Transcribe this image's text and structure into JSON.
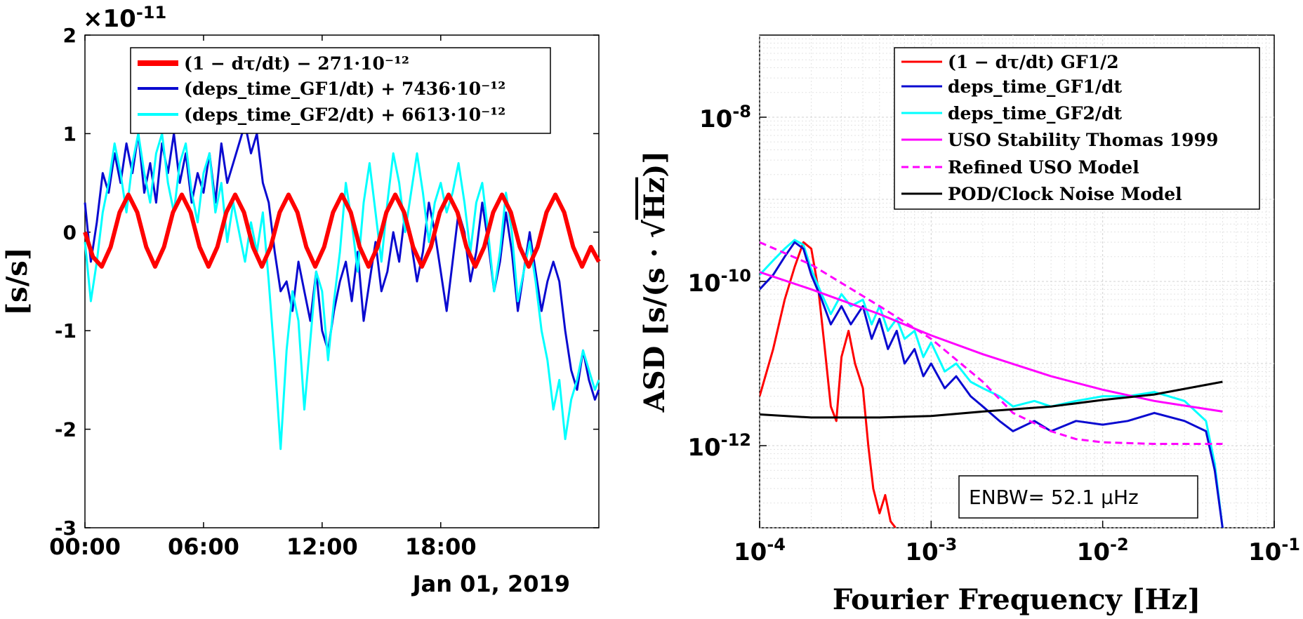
{
  "chart_data": [
    {
      "type": "line",
      "title": "",
      "exponent_label": "×10",
      "exponent_sup": "-11",
      "ylabel": "[s/s]",
      "ylim": [
        -3,
        2
      ],
      "yticks": [
        "-3",
        "-2",
        "-1",
        "0",
        "1",
        "2"
      ],
      "ytick_values": [
        -3,
        -2,
        -1,
        0,
        1,
        2
      ],
      "xlim_hours": [
        0,
        26
      ],
      "xticks": [
        "00:00",
        "06:00",
        "12:00",
        "18:00"
      ],
      "xtick_hours": [
        0,
        6,
        12,
        18
      ],
      "date_label": "Jan 01, 2019",
      "legend": [
        {
          "label": "(1 − dτ/dt) − 271·10⁻¹²",
          "color": "#ff0000"
        },
        {
          "label": "(deps_time_GF1/dt) + 7436·10⁻¹²",
          "color": "#0a0ad0"
        },
        {
          "label": "(deps_time_GF2/dt) + 6613·10⁻¹²",
          "color": "#00ffff"
        }
      ],
      "series": [
        {
          "name": "red",
          "color": "#ff0000",
          "x": [
            0,
            0.4,
            0.85,
            1.3,
            1.75,
            2.2,
            2.65,
            3.1,
            3.55,
            4.0,
            4.45,
            4.9,
            5.35,
            5.8,
            6.25,
            6.7,
            7.15,
            7.6,
            8.05,
            8.5,
            8.95,
            9.4,
            9.85,
            10.3,
            10.75,
            11.2,
            11.65,
            12.1,
            12.55,
            13.0,
            13.45,
            13.9,
            14.35,
            14.8,
            15.25,
            15.7,
            16.15,
            16.6,
            17.05,
            17.5,
            17.95,
            18.4,
            18.85,
            19.3,
            19.75,
            20.2,
            20.65,
            21.1,
            21.55,
            22.0,
            22.45,
            22.9,
            23.35,
            23.8,
            24.25,
            24.7,
            25.15,
            25.6,
            26
          ],
          "values": [
            0,
            -0.25,
            -0.35,
            -0.15,
            0.2,
            0.38,
            0.2,
            -0.15,
            -0.35,
            -0.15,
            0.2,
            0.38,
            0.2,
            -0.15,
            -0.35,
            -0.15,
            0.2,
            0.38,
            0.2,
            -0.15,
            -0.35,
            -0.15,
            0.2,
            0.38,
            0.2,
            -0.15,
            -0.35,
            -0.15,
            0.2,
            0.38,
            0.2,
            -0.15,
            -0.35,
            -0.15,
            0.2,
            0.38,
            0.2,
            -0.15,
            -0.35,
            -0.15,
            0.2,
            0.38,
            0.2,
            -0.15,
            -0.35,
            -0.15,
            0.2,
            0.38,
            0.2,
            -0.15,
            -0.35,
            -0.15,
            0.2,
            0.38,
            0.2,
            -0.15,
            -0.35,
            -0.15,
            -0.3
          ]
        },
        {
          "name": "blue",
          "color": "#0a0ad0",
          "x": [
            0,
            0.3,
            0.6,
            0.9,
            1.2,
            1.5,
            1.8,
            2.1,
            2.4,
            2.7,
            3.0,
            3.3,
            3.6,
            3.9,
            4.2,
            4.5,
            4.8,
            5.1,
            5.4,
            5.7,
            6.0,
            6.3,
            6.6,
            6.9,
            7.2,
            7.5,
            7.8,
            8.1,
            8.4,
            8.7,
            9.0,
            9.3,
            9.6,
            9.9,
            10.2,
            10.5,
            10.8,
            11.1,
            11.4,
            11.7,
            12.0,
            12.3,
            12.6,
            12.9,
            13.2,
            13.5,
            13.8,
            14.1,
            14.4,
            14.7,
            15.0,
            15.3,
            15.6,
            15.9,
            16.2,
            16.5,
            16.8,
            17.1,
            17.4,
            17.7,
            18.0,
            18.3,
            18.6,
            18.9,
            19.2,
            19.5,
            19.8,
            20.1,
            20.4,
            20.7,
            21.0,
            21.3,
            21.6,
            21.9,
            22.2,
            22.5,
            22.8,
            23.1,
            23.4,
            23.7,
            24.0,
            24.3,
            24.6,
            24.9,
            25.2,
            25.5,
            25.8,
            26
          ],
          "values": [
            0.3,
            -0.3,
            0.1,
            0.6,
            0.4,
            0.8,
            0.5,
            0.9,
            0.6,
            1.0,
            0.4,
            0.7,
            0.3,
            0.9,
            0.6,
            1.0,
            0.5,
            0.8,
            0.3,
            0.6,
            0.4,
            0.8,
            0.3,
            0.9,
            0.5,
            0.7,
            0.9,
            1.1,
            0.8,
            1.0,
            0.5,
            0.3,
            -0.2,
            -0.6,
            -0.5,
            -0.8,
            -0.3,
            -0.6,
            -0.9,
            -0.4,
            -1.0,
            -1.2,
            -0.8,
            -0.5,
            -0.3,
            -0.7,
            -0.2,
            -0.9,
            -0.5,
            -0.1,
            -0.6,
            -0.4,
            0.0,
            -0.3,
            0.2,
            -0.1,
            -0.5,
            -0.2,
            0.3,
            0.0,
            -0.4,
            -0.8,
            -0.3,
            0.2,
            0.0,
            -0.5,
            -0.2,
            0.3,
            -0.1,
            -0.6,
            -0.3,
            0.2,
            -0.2,
            -0.8,
            -0.4,
            0.0,
            -0.4,
            -0.8,
            -0.5,
            -0.3,
            -0.5,
            -1.0,
            -1.4,
            -1.6,
            -1.2,
            -1.5,
            -1.7,
            -1.6
          ]
        },
        {
          "name": "cyan",
          "color": "#00ffff",
          "x": [
            0,
            0.3,
            0.6,
            0.9,
            1.2,
            1.5,
            1.8,
            2.1,
            2.4,
            2.7,
            3.0,
            3.3,
            3.6,
            3.9,
            4.2,
            4.5,
            4.8,
            5.1,
            5.4,
            5.7,
            6.0,
            6.3,
            6.6,
            6.9,
            7.2,
            7.5,
            7.8,
            8.1,
            8.4,
            8.7,
            9.0,
            9.3,
            9.6,
            9.9,
            10.2,
            10.5,
            10.8,
            11.1,
            11.4,
            11.7,
            12.0,
            12.3,
            12.6,
            12.9,
            13.2,
            13.5,
            13.8,
            14.1,
            14.4,
            14.7,
            15.0,
            15.3,
            15.6,
            15.9,
            16.2,
            16.5,
            16.8,
            17.1,
            17.4,
            17.7,
            18.0,
            18.3,
            18.6,
            18.9,
            19.2,
            19.5,
            19.8,
            20.1,
            20.4,
            20.7,
            21.0,
            21.3,
            21.6,
            21.9,
            22.2,
            22.5,
            22.8,
            23.1,
            23.4,
            23.7,
            24.0,
            24.3,
            24.6,
            24.9,
            25.2,
            25.5,
            25.8,
            26
          ],
          "values": [
            -0.1,
            -0.7,
            -0.3,
            0.2,
            0.5,
            0.9,
            0.6,
            0.2,
            0.7,
            1.0,
            0.6,
            0.3,
            0.8,
            1.0,
            0.5,
            0.2,
            0.7,
            0.9,
            0.4,
            0.1,
            0.6,
            0.8,
            0.2,
            0.5,
            -0.1,
            0.3,
            0.0,
            -0.3,
            0.1,
            -0.2,
            0.2,
            -0.5,
            -1.3,
            -2.2,
            -1.2,
            -0.6,
            -0.9,
            -1.8,
            -1.1,
            -0.4,
            -0.6,
            -1.3,
            -0.7,
            -0.2,
            0.5,
            0.1,
            -0.4,
            0.3,
            0.7,
            0.2,
            -0.3,
            0.3,
            0.8,
            0.5,
            0.0,
            0.4,
            0.8,
            0.4,
            -0.1,
            0.3,
            0.5,
            0.2,
            0.4,
            0.7,
            0.3,
            -0.2,
            0.3,
            0.5,
            0.0,
            -0.6,
            -0.2,
            0.4,
            0.0,
            -0.7,
            -0.4,
            -0.1,
            -0.5,
            -1.0,
            -1.3,
            -1.8,
            -1.5,
            -2.1,
            -1.7,
            -1.5,
            -1.2,
            -1.4,
            -1.6,
            -1.5
          ]
        }
      ]
    },
    {
      "type": "line",
      "title": "",
      "xscale": "log",
      "yscale": "log",
      "xlabel": "Fourier Frequency [Hz]",
      "ylabel_main": "ASD [s/(s · √",
      "ylabel_root": "Hz",
      "ylabel_end": ")]",
      "xlim": [
        0.0001,
        0.1
      ],
      "ylim": [
        1e-13,
        1e-07
      ],
      "xticks": [
        {
          "base": "10",
          "exp": "-4"
        },
        {
          "base": "10",
          "exp": "-3"
        },
        {
          "base": "10",
          "exp": "-2"
        },
        {
          "base": "10",
          "exp": "-1"
        }
      ],
      "xtick_values": [
        0.0001,
        0.001,
        0.01,
        0.1
      ],
      "yticks": [
        {
          "base": "10",
          "exp": "-12"
        },
        {
          "base": "10",
          "exp": "-10"
        },
        {
          "base": "10",
          "exp": "-8"
        }
      ],
      "ytick_values": [
        1e-12,
        1e-10,
        1e-08
      ],
      "annotation": "ENBW= 52.1 μHz",
      "legend": [
        {
          "label": "(1 − dτ/dt) GF1/2",
          "color": "#ff0000",
          "dash": false
        },
        {
          "label": "deps_time_GF1/dt",
          "color": "#0a0ad0",
          "dash": false
        },
        {
          "label": "deps_time_GF2/dt",
          "color": "#00ffff",
          "dash": false
        },
        {
          "label": "USO Stability Thomas 1999",
          "color": "#ff00ff",
          "dash": false
        },
        {
          "label": "Refined USO Model",
          "color": "#ff00ff",
          "dash": true
        },
        {
          "label": "POD/Clock Noise Model",
          "color": "#000000",
          "dash": false
        }
      ],
      "series": [
        {
          "name": "red",
          "color": "#ff0000",
          "x": [
            0.0001,
            0.00012,
            0.00014,
            0.00016,
            0.00018,
            0.0002,
            0.00022,
            0.00024,
            0.00026,
            0.00028,
            0.0003,
            0.00033,
            0.00036,
            0.0004,
            0.00043,
            0.00046,
            0.0005,
            0.00054,
            0.00058,
            0.00062
          ],
          "values": [
            4e-12,
            1.5e-11,
            6e-11,
            1.5e-10,
            3e-10,
            2.5e-10,
            8e-11,
            1.5e-11,
            3e-12,
            2e-12,
            1.2e-11,
            2.5e-11,
            1e-11,
            5e-12,
            1e-12,
            3e-13,
            1.5e-13,
            2.5e-13,
            1.2e-13,
            1e-13
          ]
        },
        {
          "name": "blue",
          "color": "#0a0ad0",
          "x": [
            0.0001,
            0.00012,
            0.00014,
            0.00016,
            0.00018,
            0.0002,
            0.00023,
            0.00026,
            0.0003,
            0.00034,
            0.0004,
            0.00045,
            0.0005,
            0.00056,
            0.00063,
            0.0007,
            0.0008,
            0.0009,
            0.001,
            0.0012,
            0.0014,
            0.0017,
            0.002,
            0.0025,
            0.003,
            0.004,
            0.005,
            0.007,
            0.01,
            0.014,
            0.02,
            0.03,
            0.04,
            0.045,
            0.05
          ],
          "values": [
            8e-11,
            1.2e-10,
            2e-10,
            3e-10,
            2.5e-10,
            1.2e-10,
            6e-11,
            3e-11,
            5e-11,
            3e-11,
            5e-11,
            2e-11,
            3.5e-11,
            1.5e-11,
            2.5e-11,
            1e-11,
            1.5e-11,
            7e-12,
            1e-11,
            5e-12,
            7e-12,
            4e-12,
            3e-12,
            2e-12,
            1.5e-12,
            2e-12,
            1.5e-12,
            2e-12,
            1.8e-12,
            2e-12,
            2.5e-12,
            2e-12,
            1.5e-12,
            5e-13,
            1e-13
          ]
        },
        {
          "name": "cyan",
          "color": "#00ffff",
          "x": [
            0.0001,
            0.00012,
            0.00014,
            0.00016,
            0.00018,
            0.0002,
            0.00023,
            0.00026,
            0.0003,
            0.00034,
            0.0004,
            0.00045,
            0.0005,
            0.00056,
            0.00063,
            0.0007,
            0.0008,
            0.0009,
            0.001,
            0.0012,
            0.0014,
            0.0017,
            0.002,
            0.0025,
            0.003,
            0.004,
            0.005,
            0.007,
            0.01,
            0.014,
            0.02,
            0.03,
            0.04,
            0.045,
            0.05
          ],
          "values": [
            1.2e-10,
            1.8e-10,
            2.5e-10,
            3.2e-10,
            2.8e-10,
            1.4e-10,
            7e-11,
            4e-11,
            7e-11,
            5e-11,
            6e-11,
            3e-11,
            5e-11,
            2.5e-11,
            3.5e-11,
            2e-11,
            2.5e-11,
            1.2e-11,
            1.8e-11,
            8e-12,
            1e-11,
            6e-12,
            5e-12,
            4e-12,
            3e-12,
            3.5e-12,
            3e-12,
            3.5e-12,
            4e-12,
            4e-12,
            4.5e-12,
            3.5e-12,
            2e-12,
            6e-13,
            1e-13
          ]
        },
        {
          "name": "magenta",
          "color": "#ff00ff",
          "x": [
            0.0001,
            0.0002,
            0.0005,
            0.001,
            0.002,
            0.005,
            0.01,
            0.02,
            0.05
          ],
          "values": [
            1.3e-10,
            8e-11,
            4e-11,
            2.2e-11,
            1.3e-11,
            7e-12,
            4.8e-12,
            3.5e-12,
            2.6e-12
          ]
        },
        {
          "name": "magenta-dashed",
          "color": "#ff00ff",
          "dash": true,
          "x": [
            0.0001,
            0.0002,
            0.0005,
            0.001,
            0.002,
            0.003,
            0.005,
            0.007,
            0.01,
            0.02,
            0.05
          ],
          "values": [
            3e-10,
            1.6e-10,
            5e-11,
            2e-11,
            6e-12,
            2.5e-12,
            1.5e-12,
            1.2e-12,
            1.1e-12,
            1.05e-12,
            1.05e-12
          ]
        },
        {
          "name": "black",
          "color": "#000000",
          "x": [
            0.0001,
            0.0002,
            0.0005,
            0.001,
            0.002,
            0.005,
            0.01,
            0.02,
            0.05
          ],
          "values": [
            2.4e-12,
            2.2e-12,
            2.2e-12,
            2.3e-12,
            2.6e-12,
            3e-12,
            3.6e-12,
            4.2e-12,
            6e-12
          ]
        }
      ]
    }
  ]
}
